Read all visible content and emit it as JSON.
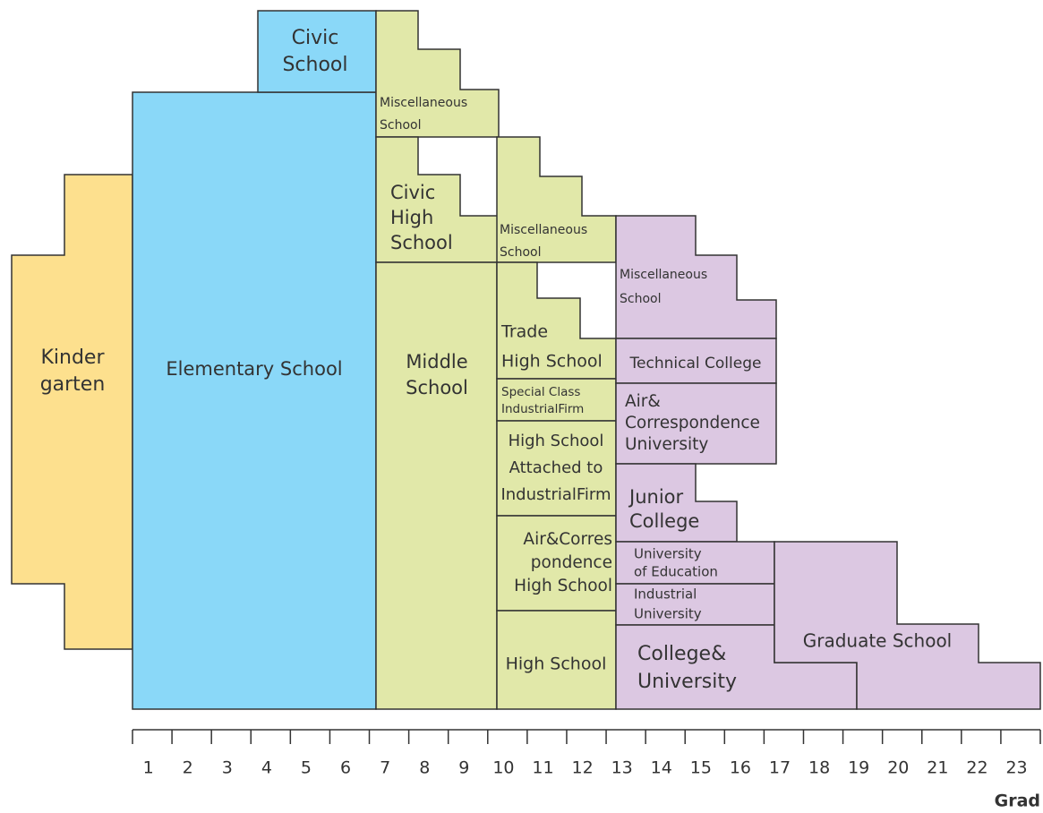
{
  "blocks": [
    {
      "lines": [
        "Civic",
        "School"
      ]
    },
    {
      "lines": [
        "Kinder",
        "garten"
      ]
    },
    {
      "lines": [
        "Elementary School"
      ]
    },
    {
      "lines": [
        "Miscellaneous",
        "School"
      ]
    },
    {
      "lines": [
        "Civic",
        "High",
        "School"
      ]
    },
    {
      "lines": [
        "Middle",
        "School"
      ]
    },
    {
      "lines": [
        "Miscellaneous",
        "School"
      ]
    },
    {
      "lines": [
        "Trade",
        "High School"
      ]
    },
    {
      "lines": [
        "Special Class",
        "IndustrialFirm"
      ]
    },
    {
      "lines": [
        "High School",
        "Attached to",
        "IndustrialFirm"
      ]
    },
    {
      "lines": [
        "Air&Corres",
        "pondence",
        "High School"
      ]
    },
    {
      "lines": [
        "High School"
      ]
    },
    {
      "lines": [
        "Miscellaneous",
        "School"
      ]
    },
    {
      "lines": [
        "Technical College"
      ]
    },
    {
      "lines": [
        "Air&",
        "Correspondence",
        "University"
      ]
    },
    {
      "lines": [
        "Junior",
        "College"
      ]
    },
    {
      "lines": [
        "University",
        "of Education"
      ]
    },
    {
      "lines": [
        "Industrial",
        "University"
      ]
    },
    {
      "lines": [
        "College&",
        "University"
      ]
    },
    {
      "lines": [
        "Graduate School"
      ]
    }
  ],
  "axis": {
    "ticks": [
      1,
      2,
      3,
      4,
      5,
      6,
      7,
      8,
      9,
      10,
      11,
      12,
      13,
      14,
      15,
      16,
      17,
      18,
      19,
      20,
      21,
      22,
      23
    ],
    "label": "Grad"
  }
}
